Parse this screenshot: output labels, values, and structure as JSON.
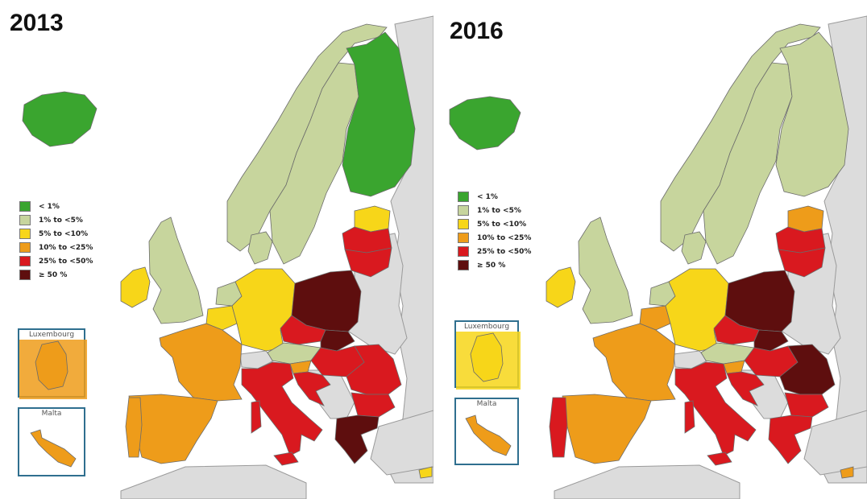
{
  "colors": {
    "lt1": "#3aa52f",
    "p1to5": "#c7d59d",
    "p5to10": "#f7d619",
    "p10to25": "#ee9c1a",
    "p25to50": "#d9191f",
    "ge50": "#5e0e0e",
    "nodata": "#dcdcdc",
    "sea": "#ffffff",
    "border": "#6b6b6b"
  },
  "legend": [
    {
      "label": "< 1%",
      "color_key": "lt1"
    },
    {
      "label": "1% to <5%",
      "color_key": "p1to5"
    },
    {
      "label": "5% to <10%",
      "color_key": "p5to10"
    },
    {
      "label": "10% to <25%",
      "color_key": "p10to25"
    },
    {
      "label": "25% to <50%",
      "color_key": "p25to50"
    },
    {
      "label": "≥ 50 %",
      "color_key": "ge50"
    }
  ],
  "maps": [
    {
      "year": "2013",
      "inset_titles": {
        "luxembourg": "Luxembourg",
        "malta": "Malta"
      },
      "countries": {
        "iceland": "lt1",
        "norway": "p1to5",
        "sweden": "p1to5",
        "finland": "lt1",
        "estonia": "p5to10",
        "latvia": "p25to50",
        "lithuania": "p25to50",
        "ireland": "p5to10",
        "uk": "p1to5",
        "netherlands": "p1to5",
        "belgium": "p5to10",
        "germany": "p5to10",
        "denmark": "p1to5",
        "poland": "ge50",
        "czechia": "p25to50",
        "slovakia": "ge50",
        "austria": "p1to5",
        "hungary": "p25to50",
        "slovenia": "p10to25",
        "croatia": "p25to50",
        "romania": "p25to50",
        "bulgaria": "p25to50",
        "greece": "ge50",
        "france": "p10to25",
        "spain": "p10to25",
        "portugal": "p10to25",
        "italy": "p25to50",
        "cyprus": "p5to10",
        "luxembourg": "p10to25",
        "malta": "p10to25"
      }
    },
    {
      "year": "2016",
      "inset_titles": {
        "luxembourg": "Luxembourg",
        "malta": "Malta"
      },
      "countries": {
        "iceland": "lt1",
        "norway": "p1to5",
        "sweden": "p1to5",
        "finland": "p1to5",
        "estonia": "p10to25",
        "latvia": "p25to50",
        "lithuania": "p25to50",
        "ireland": "p5to10",
        "uk": "p1to5",
        "netherlands": "p1to5",
        "belgium": "p10to25",
        "germany": "p5to10",
        "denmark": "p1to5",
        "poland": "ge50",
        "czechia": "p25to50",
        "slovakia": "ge50",
        "austria": "p1to5",
        "hungary": "p25to50",
        "slovenia": "p10to25",
        "croatia": "p25to50",
        "romania": "ge50",
        "bulgaria": "p25to50",
        "greece": "p25to50",
        "france": "p10to25",
        "spain": "p10to25",
        "portugal": "p25to50",
        "italy": "p25to50",
        "cyprus": "p10to25",
        "luxembourg": "p5to10",
        "malta": "p10to25"
      }
    }
  ]
}
